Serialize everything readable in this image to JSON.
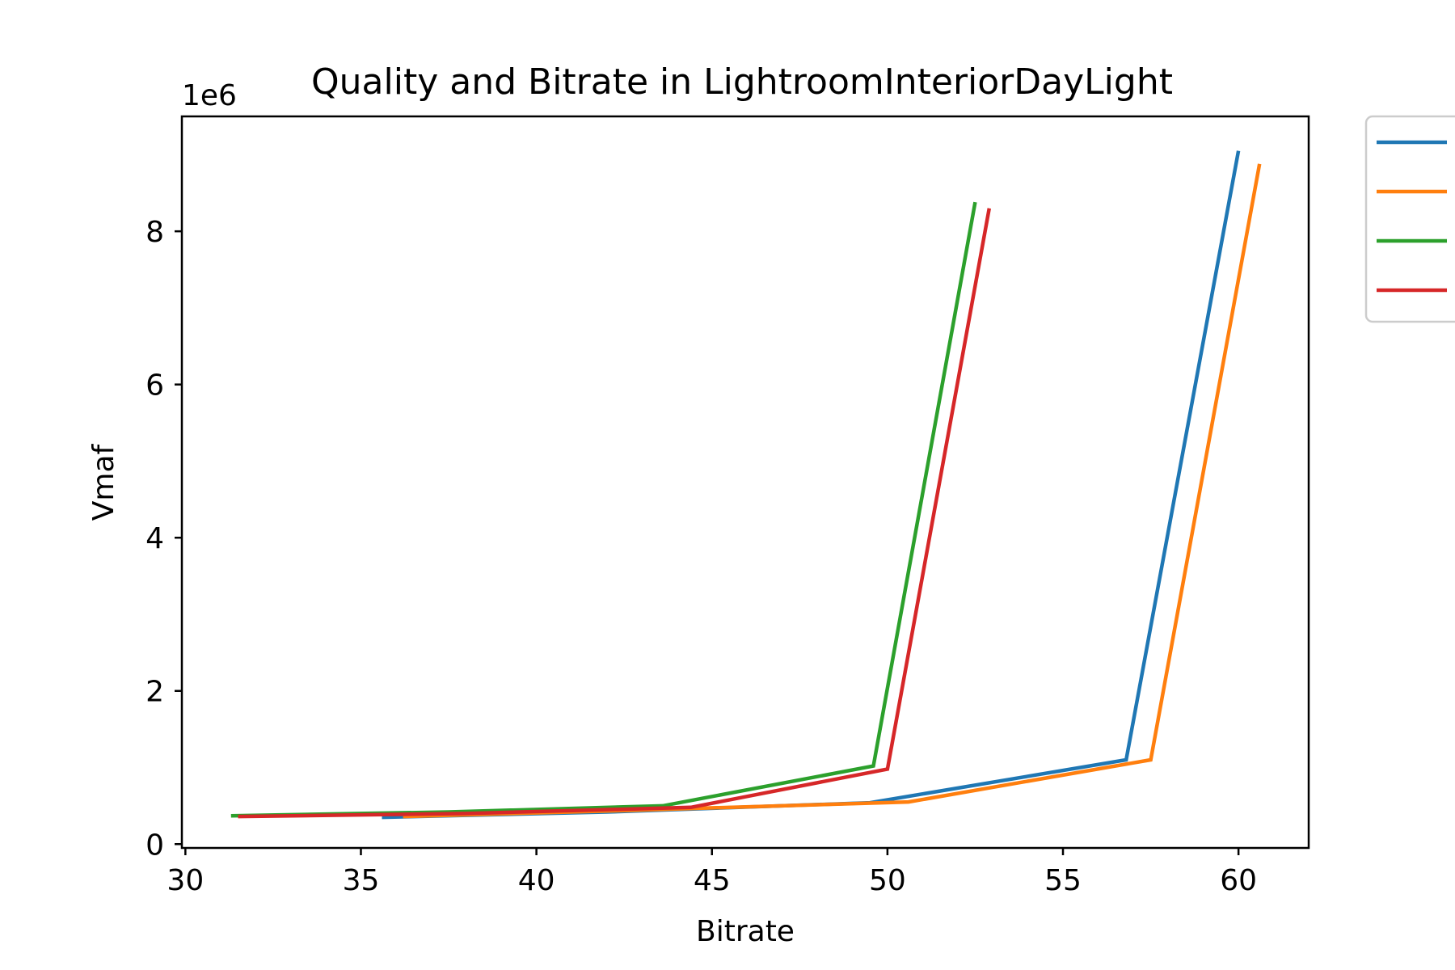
{
  "chart_data": {
    "type": "line",
    "title": "Quality and Bitrate in LightroomInteriorDayLight",
    "xlabel": "Bitrate",
    "ylabel": "Vmaf",
    "y_offset_label": "1e6",
    "xlim": [
      29.9,
      62
    ],
    "ylim": [
      -0.05,
      9.5
    ],
    "x_ticks": [
      30,
      35,
      40,
      45,
      50,
      55,
      60
    ],
    "y_ticks": [
      0,
      2,
      4,
      6,
      8
    ],
    "grid": false,
    "legend": "outside-upper-right",
    "series": [
      {
        "color": "#1f77b4",
        "points": [
          [
            35.6,
            0.35
          ],
          [
            42.0,
            0.42
          ],
          [
            49.5,
            0.54
          ],
          [
            56.8,
            1.1
          ],
          [
            60.0,
            9.05
          ]
        ]
      },
      {
        "color": "#ff7f0e",
        "points": [
          [
            36.2,
            0.36
          ],
          [
            42.6,
            0.44
          ],
          [
            50.6,
            0.55
          ],
          [
            57.5,
            1.1
          ],
          [
            60.6,
            8.88
          ]
        ]
      },
      {
        "color": "#2ca02c",
        "points": [
          [
            31.3,
            0.37
          ],
          [
            37.5,
            0.42
          ],
          [
            43.6,
            0.5
          ],
          [
            49.6,
            1.02
          ],
          [
            52.5,
            8.38
          ]
        ]
      },
      {
        "color": "#d62728",
        "points": [
          [
            31.5,
            0.36
          ],
          [
            38.0,
            0.4
          ],
          [
            44.4,
            0.48
          ],
          [
            50.0,
            0.98
          ],
          [
            52.9,
            8.3
          ]
        ]
      }
    ]
  }
}
